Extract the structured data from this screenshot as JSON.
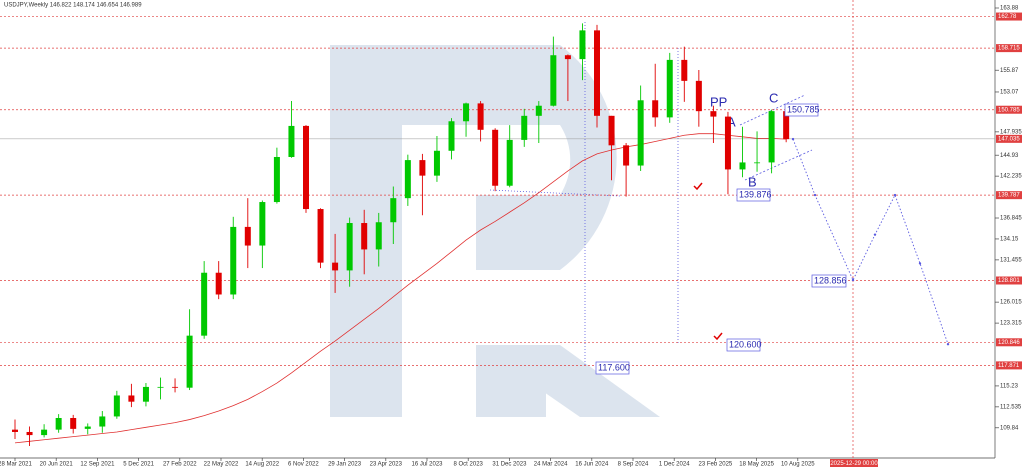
{
  "chart_data": {
    "type": "candlestick",
    "title": "USDJPY,Weekly 146.822 148.174 146.654 146.989",
    "x": [
      "28 Mar 2021",
      "20 Jun 2021",
      "12 Sep 2021",
      "5 Dec 2021",
      "27 Feb 2022",
      "22 May 2022",
      "14 Aug 2022",
      "6 Nov 2022",
      "29 Jan 2023",
      "23 Apr 2023",
      "16 Jul 2023",
      "8 Oct 2023",
      "31 Dec 2023",
      "24 Mar 2024",
      "16 Jun 2024",
      "8 Sep 2024",
      "1 Dec 2024",
      "23 Feb 2025",
      "18 May 2025",
      "10 Aug 2025"
    ],
    "candles": [
      [
        109.6,
        110.9,
        108.4,
        109.3
      ],
      [
        109.3,
        110.0,
        107.5,
        108.9
      ],
      [
        108.9,
        110.3,
        108.6,
        109.6
      ],
      [
        109.6,
        111.6,
        109.2,
        111.1
      ],
      [
        111.1,
        111.5,
        109.1,
        109.7
      ],
      [
        109.7,
        110.4,
        109.0,
        110.0
      ],
      [
        110.0,
        112.0,
        109.2,
        111.3
      ],
      [
        111.3,
        114.6,
        111.0,
        114.0
      ],
      [
        114.0,
        115.5,
        112.5,
        113.2
      ],
      [
        113.2,
        115.6,
        112.6,
        115.1
      ],
      [
        115.1,
        116.3,
        113.5,
        115.1
      ],
      [
        115.1,
        116.2,
        114.4,
        115.0
      ],
      [
        115.0,
        125.1,
        114.7,
        121.7
      ],
      [
        121.7,
        131.3,
        121.3,
        129.8
      ],
      [
        129.8,
        131.3,
        126.4,
        127.0
      ],
      [
        127.0,
        137.0,
        126.4,
        135.7
      ],
      [
        135.7,
        139.4,
        130.4,
        133.3
      ],
      [
        133.3,
        139.1,
        130.4,
        138.9
      ],
      [
        138.9,
        145.9,
        138.7,
        144.7
      ],
      [
        144.7,
        151.9,
        144.6,
        148.7
      ],
      [
        148.7,
        148.8,
        137.5,
        138.0
      ],
      [
        138.0,
        138.1,
        130.4,
        131.1
      ],
      [
        131.1,
        134.8,
        127.2,
        130.1
      ],
      [
        130.1,
        136.9,
        128.0,
        136.2
      ],
      [
        136.2,
        137.9,
        129.6,
        132.8
      ],
      [
        132.8,
        137.5,
        130.6,
        136.3
      ],
      [
        136.3,
        140.9,
        133.5,
        139.4
      ],
      [
        139.4,
        145.0,
        138.4,
        144.3
      ],
      [
        144.3,
        145.1,
        137.2,
        142.3
      ],
      [
        142.3,
        147.4,
        141.5,
        145.5
      ],
      [
        145.5,
        149.7,
        144.4,
        149.3
      ],
      [
        149.3,
        151.7,
        147.3,
        151.6
      ],
      [
        151.6,
        151.9,
        146.7,
        148.2
      ],
      [
        148.2,
        148.4,
        140.3,
        141.0
      ],
      [
        141.0,
        148.8,
        140.8,
        146.9
      ],
      [
        146.9,
        150.9,
        146.0,
        150.0
      ],
      [
        150.0,
        151.9,
        146.5,
        151.3
      ],
      [
        151.3,
        160.2,
        151.2,
        157.8
      ],
      [
        157.8,
        157.9,
        151.9,
        157.3
      ],
      [
        157.3,
        161.9,
        154.6,
        161.0
      ],
      [
        161.0,
        161.7,
        148.5,
        150.0
      ],
      [
        150.0,
        150.0,
        141.7,
        146.2
      ],
      [
        146.2,
        146.5,
        139.6,
        143.6
      ],
      [
        143.6,
        153.9,
        142.9,
        152.0
      ],
      [
        152.0,
        156.7,
        148.6,
        149.8
      ],
      [
        149.8,
        158.1,
        149.1,
        157.2
      ],
      [
        157.2,
        158.9,
        151.8,
        154.5
      ],
      [
        154.5,
        155.9,
        148.6,
        150.6
      ],
      [
        150.6,
        151.3,
        146.5,
        149.9
      ],
      [
        149.9,
        150.5,
        139.9,
        143.1
      ],
      [
        143.1,
        148.6,
        142.1,
        144.0
      ],
      [
        144.0,
        148.0,
        142.8,
        144.0
      ],
      [
        144.0,
        150.8,
        142.6,
        150.6
      ],
      [
        150.6,
        150.9,
        146.6,
        147.0
      ]
    ],
    "ma": [
      107.9,
      108.1,
      108.3,
      108.5,
      108.7,
      108.9,
      109.1,
      109.3,
      109.6,
      109.9,
      110.2,
      110.5,
      110.9,
      111.4,
      112.0,
      112.7,
      113.5,
      114.5,
      115.6,
      116.9,
      118.3,
      119.7,
      121.0,
      122.4,
      123.8,
      125.2,
      126.7,
      128.2,
      129.6,
      131.0,
      132.5,
      134.0,
      135.3,
      136.4,
      137.6,
      138.8,
      140.1,
      141.5,
      142.9,
      144.2,
      145.1,
      145.6,
      146.0,
      146.3,
      146.7,
      147.1,
      147.5,
      147.7,
      147.7,
      147.5,
      147.3,
      147.1,
      147.1,
      147.0
    ],
    "forecast": [
      147.0,
      139.8,
      128.856,
      134.7,
      139.8,
      131.0,
      120.6
    ],
    "ylim": [
      107.495,
      163.88
    ],
    "yticks": [
      163.88,
      155.87,
      153.07,
      147.935,
      144.93,
      142.235,
      136.845,
      134.15,
      131.455,
      126.015,
      123.315,
      115.23,
      112.535,
      109.84
    ],
    "levels": [
      162.78,
      158.715,
      150.785,
      139.787,
      128.801,
      120.846,
      117.871
    ],
    "current_price": 147.035,
    "forecast_date": "2025-12-29 00:00",
    "annotations": {
      "pp": "PP",
      "a": "A",
      "b": "B",
      "c": "C",
      "c_price": "150.785",
      "b_price": "139.876",
      "low1": "117.600",
      "low2": "120.600",
      "target": "128.856"
    },
    "colors": {
      "up": "#00c800",
      "down": "#e00000",
      "ma": "#e03030",
      "forecast": "#5a5ae0",
      "level": "#e04040"
    }
  }
}
